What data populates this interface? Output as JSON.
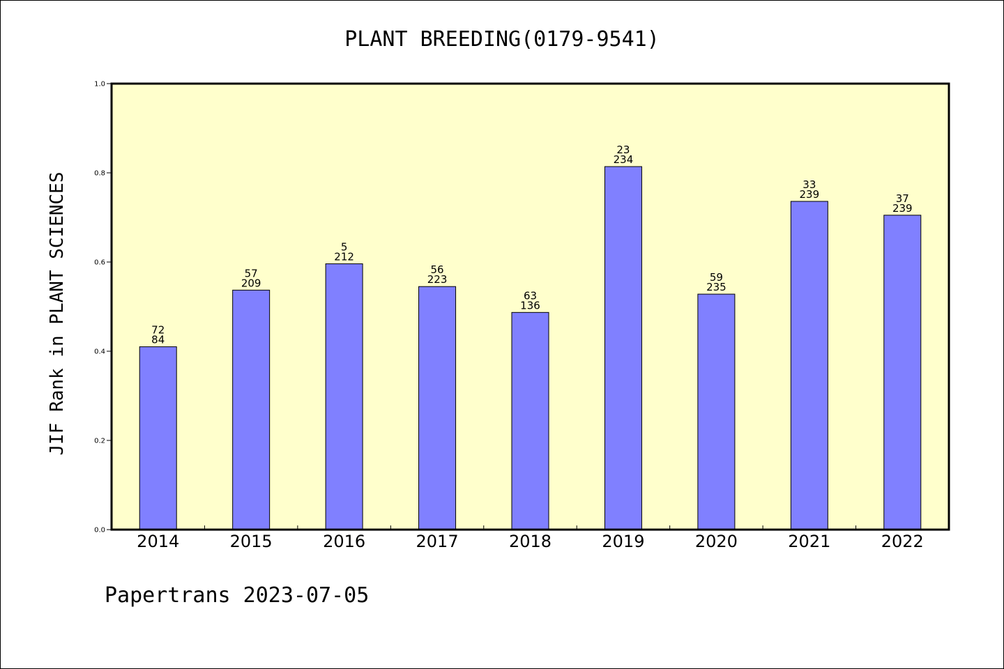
{
  "title": "PLANT BREEDING(0179-9541)",
  "footer": "Papertrans 2023-07-05",
  "colors": {
    "plot_background": "#ffffcc",
    "bar_fill": "#8080ff",
    "axis": "#000000"
  },
  "chart_data": {
    "type": "bar",
    "title": "PLANT BREEDING(0179-9541)",
    "xlabel": "",
    "ylabel": "JIF Rank in PLANT SCIENCES",
    "ylim": [
      0,
      1.0
    ],
    "yticks": [
      "0.0",
      "0.2",
      "0.4",
      "0.6",
      "0.8",
      "1.0"
    ],
    "grid": false,
    "categories": [
      "2014",
      "2015",
      "2016",
      "2017",
      "2018",
      "2019",
      "2020",
      "2021",
      "2022"
    ],
    "values": [
      0.41,
      0.537,
      0.596,
      0.545,
      0.487,
      0.814,
      0.528,
      0.736,
      0.705
    ],
    "labels_top": [
      "72",
      "57",
      "5",
      "56",
      "63",
      "23",
      "59",
      "33",
      "37"
    ],
    "labels_bottom": [
      "84",
      "209",
      "212",
      "223",
      "136",
      "234",
      "235",
      "239",
      "239"
    ]
  }
}
